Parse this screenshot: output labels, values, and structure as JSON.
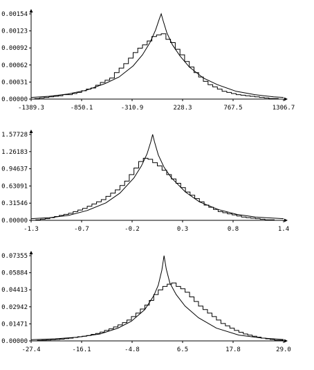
{
  "chart_data": [
    {
      "type": "line",
      "series": [
        {
          "kind": "histogram-step",
          "x": [
            -1389.3,
            -1350,
            -1300,
            -1250,
            -1200,
            -1150,
            -1100,
            -1050,
            -1000,
            -950,
            -900,
            -850,
            -800,
            -750,
            -700,
            -650,
            -600,
            -550,
            -500,
            -450,
            -400,
            -350,
            -300,
            -250,
            -200,
            -150,
            -100,
            -50,
            0,
            50,
            100,
            150,
            200,
            250,
            300,
            350,
            400,
            450,
            500,
            550,
            600,
            650,
            700,
            750,
            800,
            850,
            900,
            950,
            1000,
            1050,
            1100,
            1150,
            1200,
            1250,
            1306.7
          ],
          "y": [
            0.0,
            1e-05,
            2e-05,
            3e-05,
            4e-05,
            5e-05,
            6e-05,
            8e-05,
            8e-05,
            0.0001,
            0.00012,
            0.00015,
            0.00018,
            0.0002,
            0.00025,
            0.0003,
            0.00034,
            0.00038,
            0.00048,
            0.00056,
            0.00064,
            0.00074,
            0.00084,
            0.00092,
            0.00098,
            0.00105,
            0.00113,
            0.00116,
            0.00118,
            0.00108,
            0.00102,
            0.0009,
            0.0008,
            0.00068,
            0.00058,
            0.00048,
            0.0004,
            0.00032,
            0.00026,
            0.00022,
            0.00018,
            0.00014,
            0.00012,
            0.0001,
            8e-05,
            7e-05,
            6e-05,
            5e-05,
            4e-05,
            3e-05,
            2e-05,
            1e-05,
            1e-05,
            0.0,
            0.0
          ]
        },
        {
          "kind": "density-curve",
          "x": [
            -1389.3,
            -1200,
            -1000,
            -800,
            -600,
            -450,
            -300,
            -200,
            -120,
            -60,
            -20,
            0,
            20,
            60,
            120,
            200,
            300,
            450,
            600,
            800,
            1000,
            1200,
            1306.7
          ],
          "y": [
            3e-05,
            5e-05,
            9e-05,
            0.00016,
            0.00028,
            0.0004,
            0.0006,
            0.0008,
            0.00102,
            0.00125,
            0.00145,
            0.00154,
            0.00142,
            0.0012,
            0.00098,
            0.00078,
            0.00058,
            0.00038,
            0.00026,
            0.00014,
            8e-05,
            4e-05,
            3e-05
          ]
        }
      ],
      "xticks": [
        "-1389.3",
        "-850.1",
        "-310.9",
        "228.3",
        "767.5",
        "1306.7"
      ],
      "yticks": [
        "0.00000",
        "0.00031",
        "0.00062",
        "0.00092",
        "0.00123",
        "0.00154"
      ],
      "xlim": [
        -1389.3,
        1306.7
      ],
      "ylim": [
        0,
        0.00154
      ],
      "grid": false
    },
    {
      "type": "line",
      "series": [
        {
          "kind": "histogram-step",
          "x": [
            -1.3,
            -1.25,
            -1.2,
            -1.15,
            -1.1,
            -1.05,
            -1.0,
            -0.95,
            -0.9,
            -0.85,
            -0.8,
            -0.75,
            -0.7,
            -0.65,
            -0.6,
            -0.55,
            -0.5,
            -0.45,
            -0.4,
            -0.35,
            -0.3,
            -0.25,
            -0.2,
            -0.15,
            -0.1,
            -0.05,
            0.0,
            0.05,
            0.1,
            0.15,
            0.2,
            0.25,
            0.3,
            0.35,
            0.4,
            0.45,
            0.5,
            0.55,
            0.6,
            0.65,
            0.7,
            0.75,
            0.8,
            0.85,
            0.9,
            0.95,
            1.0,
            1.05,
            1.1,
            1.15,
            1.2,
            1.25,
            1.3,
            1.4
          ],
          "y": [
            0.0,
            0.01,
            0.02,
            0.03,
            0.05,
            0.07,
            0.09,
            0.11,
            0.13,
            0.16,
            0.19,
            0.22,
            0.26,
            0.3,
            0.34,
            0.38,
            0.44,
            0.5,
            0.56,
            0.64,
            0.72,
            0.84,
            0.96,
            1.08,
            1.14,
            1.12,
            1.06,
            1.0,
            0.92,
            0.84,
            0.76,
            0.68,
            0.6,
            0.52,
            0.46,
            0.4,
            0.34,
            0.28,
            0.24,
            0.2,
            0.16,
            0.14,
            0.12,
            0.1,
            0.08,
            0.06,
            0.05,
            0.04,
            0.03,
            0.02,
            0.01,
            0.01,
            0.0,
            0.0
          ]
        },
        {
          "kind": "density-curve",
          "x": [
            -1.3,
            -1.1,
            -0.9,
            -0.7,
            -0.5,
            -0.35,
            -0.2,
            -0.12,
            -0.06,
            -0.02,
            0.0,
            0.02,
            0.06,
            0.12,
            0.2,
            0.35,
            0.5,
            0.7,
            0.9,
            1.1,
            1.4
          ],
          "y": [
            0.03,
            0.05,
            0.09,
            0.18,
            0.32,
            0.5,
            0.78,
            1.0,
            1.22,
            1.44,
            1.57728,
            1.44,
            1.2,
            0.98,
            0.78,
            0.52,
            0.34,
            0.2,
            0.11,
            0.06,
            0.03
          ]
        }
      ],
      "xticks": [
        "-1.3",
        "-0.7",
        "-0.2",
        "0.3",
        "0.8",
        "1.4"
      ],
      "yticks": [
        "0.00000",
        "0.31546",
        "0.63091",
        "0.94637",
        "1.26183",
        "1.57728"
      ],
      "xlim": [
        -1.3,
        1.4
      ],
      "ylim": [
        0,
        1.57728
      ],
      "grid": false
    },
    {
      "type": "line",
      "series": [
        {
          "kind": "histogram-step",
          "x": [
            -27.4,
            -26,
            -25,
            -24,
            -23,
            -22,
            -21,
            -20,
            -19,
            -18,
            -17,
            -16,
            -15,
            -14,
            -13,
            -12,
            -11,
            -10,
            -9,
            -8,
            -7,
            -6,
            -5,
            -4,
            -3,
            -2,
            -1,
            0,
            1,
            2,
            3,
            4,
            5,
            6,
            7,
            8,
            9,
            10,
            11,
            12,
            13,
            14,
            15,
            16,
            17,
            18,
            19,
            20,
            21,
            22,
            23,
            24,
            25,
            26,
            27,
            29.0
          ],
          "y": [
            0.0,
            0.0004,
            0.0006,
            0.0008,
            0.001,
            0.0012,
            0.0015,
            0.002,
            0.0024,
            0.003,
            0.0036,
            0.004,
            0.0046,
            0.0056,
            0.0064,
            0.0076,
            0.009,
            0.0104,
            0.012,
            0.0138,
            0.0158,
            0.018,
            0.021,
            0.024,
            0.0275,
            0.031,
            0.035,
            0.04,
            0.044,
            0.047,
            0.049,
            0.05,
            0.047,
            0.045,
            0.042,
            0.038,
            0.034,
            0.03,
            0.027,
            0.024,
            0.021,
            0.018,
            0.015,
            0.013,
            0.011,
            0.009,
            0.0075,
            0.006,
            0.005,
            0.004,
            0.0032,
            0.0024,
            0.0018,
            0.0012,
            0.0006,
            0.0
          ]
        },
        {
          "kind": "density-curve",
          "x": [
            -27.4,
            -22,
            -17,
            -12,
            -8,
            -5,
            -2,
            0,
            1,
            1.8,
            2.3,
            2.8,
            3.6,
            5,
            7,
            10,
            14,
            19,
            24,
            29.0
          ],
          "y": [
            0.001,
            0.0018,
            0.0032,
            0.006,
            0.011,
            0.017,
            0.027,
            0.039,
            0.048,
            0.061,
            0.07355,
            0.062,
            0.05,
            0.04,
            0.03,
            0.02,
            0.011,
            0.005,
            0.0025,
            0.0012
          ]
        }
      ],
      "xticks": [
        "-27.4",
        "-16.1",
        "-4.8",
        "6.5",
        "17.8",
        "29.0"
      ],
      "yticks": [
        "0.00000",
        "0.01471",
        "0.02942",
        "0.04413",
        "0.05884",
        "0.07355"
      ],
      "xlim": [
        -27.4,
        29.0
      ],
      "ylim": [
        0,
        0.07355
      ],
      "grid": false
    }
  ]
}
